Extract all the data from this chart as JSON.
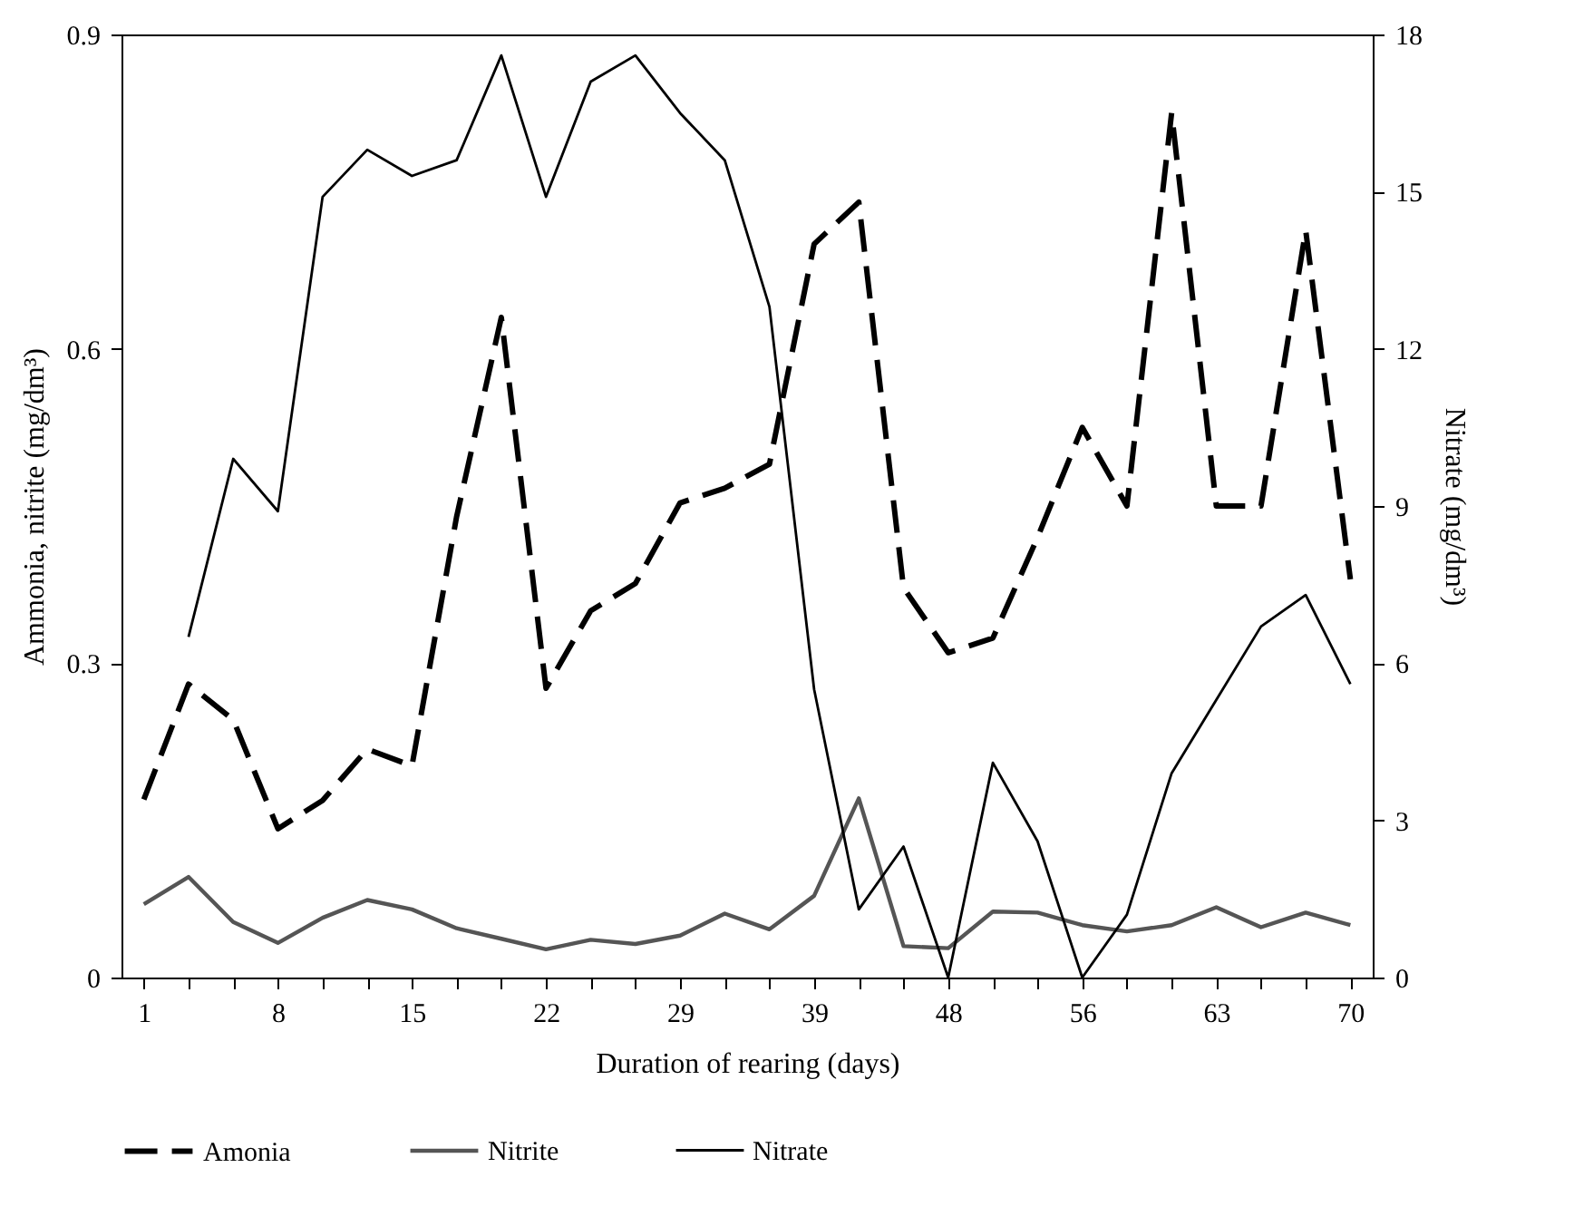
{
  "chart_data": {
    "type": "line",
    "xlabel": "Duration of rearing (days)",
    "ylabel": "Ammonia, nitrite (mg/dm³)",
    "y2label": "Nitrate (mg/dm³)",
    "categories": [
      "1",
      null,
      null,
      "8",
      null,
      null,
      "15",
      null,
      null,
      "22",
      null,
      null,
      "29",
      null,
      null,
      "39",
      null,
      null,
      "48",
      null,
      null,
      "56",
      null,
      null,
      "63",
      null,
      null,
      "70"
    ],
    "series": [
      {
        "name": "Amonia",
        "color": "#000000",
        "line_style": "dashed",
        "values": [
          0.17,
          0.28,
          0.246,
          0.142,
          0.169,
          0.218,
          0.202,
          0.44,
          0.63,
          0.276,
          0.35,
          0.376,
          0.453,
          0.467,
          0.49,
          0.7,
          0.74,
          0.372,
          0.31,
          0.324,
          0.42,
          0.525,
          0.45,
          0.825,
          0.45,
          0.45,
          0.713,
          0.38
        ]
      },
      {
        "name": "Nitrite",
        "color": "#555555",
        "line_style": "solid",
        "values": [
          0.07,
          0.096,
          0.053,
          0.033,
          0.057,
          0.074,
          0.065,
          0.047,
          0.037,
          0.027,
          0.036,
          0.032,
          0.04,
          0.061,
          0.046,
          0.078,
          0.171,
          0.03,
          0.028,
          0.063,
          0.062,
          0.05,
          0.044,
          0.05,
          0.067,
          0.048,
          0.062,
          0.05
        ]
      },
      {
        "name": "Nitrate",
        "color": "#000000",
        "line_style": "solid",
        "axis": "y2",
        "values": [
          null,
          6.5,
          9.9,
          8.9,
          14.9,
          15.8,
          15.3,
          15.6,
          17.6,
          14.9,
          17.1,
          17.6,
          16.5,
          15.6,
          12.8,
          5.5,
          1.3,
          2.5,
          0,
          4.1,
          2.6,
          0,
          1.2,
          3.9,
          5.3,
          6.7,
          7.3,
          5.6
        ]
      }
    ],
    "ylim": [
      0,
      0.9
    ],
    "yticks": [
      0,
      0.3,
      0.6,
      0.9
    ],
    "y2lim": [
      0,
      18
    ],
    "y2ticks": [
      0,
      3,
      6,
      9,
      12,
      15,
      18
    ],
    "legend": "bottom"
  }
}
